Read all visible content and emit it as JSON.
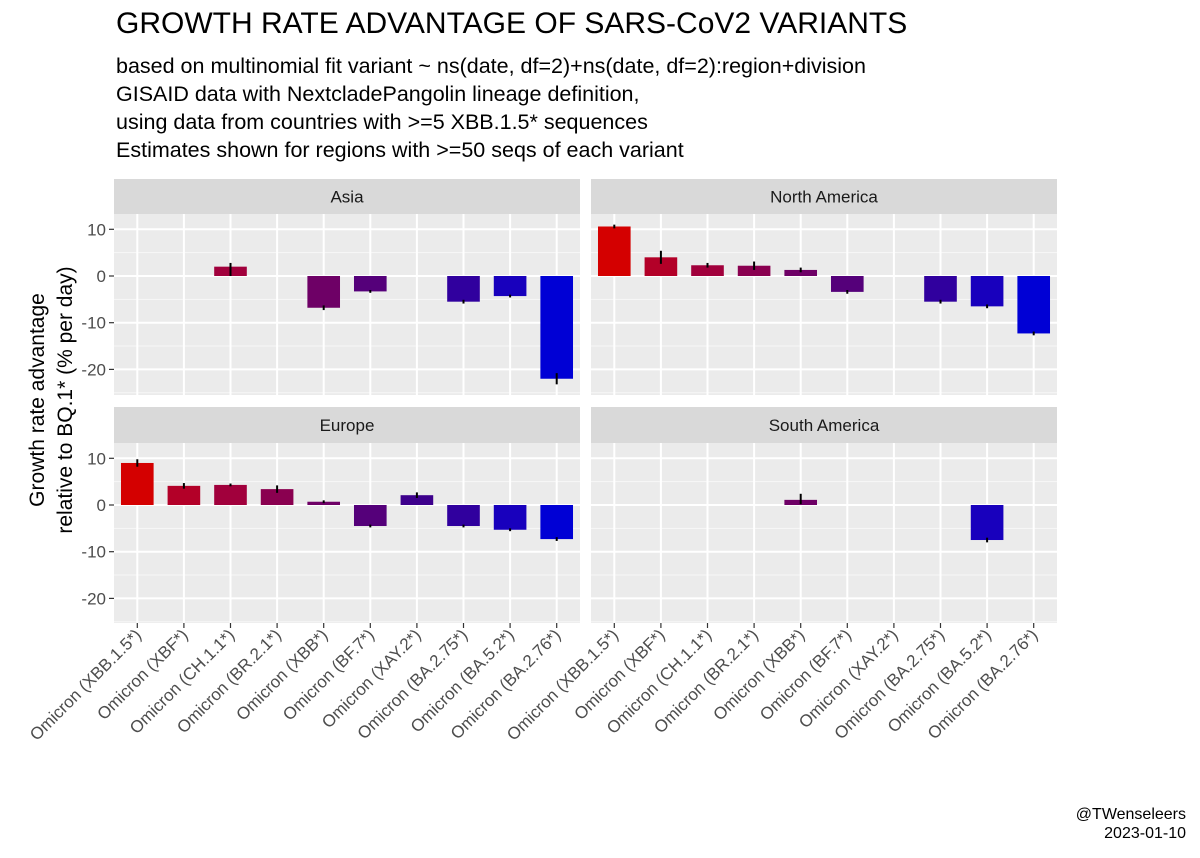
{
  "chart_data": {
    "type": "bar",
    "title": "GROWTH RATE ADVANTAGE OF SARS-CoV2 VARIANTS",
    "subtitle": [
      "based on multinomial fit variant ~ ns(date, df=2)+ns(date, df=2):region+division",
      "GISAID data with NextcladePangolin lineage definition,",
      "using data from countries with >=5 XBB.1.5* sequences",
      "Estimates shown for regions with >=50 seqs of each variant"
    ],
    "ylabel": [
      "Growth rate advantage",
      "relative to BQ.1* (% per day)"
    ],
    "xlabel": "",
    "ylim": [
      -25,
      12
    ],
    "yticks": [
      10,
      0,
      -10,
      -20
    ],
    "grid": true,
    "categories": [
      "Omicron (XBB.1.5*)",
      "Omicron (XBF*)",
      "Omicron (CH.1.1*)",
      "Omicron (BR.2.1*)",
      "Omicron (XBB*)",
      "Omicron (BF.7*)",
      "Omicron (XAY.2*)",
      "Omicron (BA.2.75*)",
      "Omicron (BA.5.2*)",
      "Omicron (BA.2.76*)"
    ],
    "category_colors": [
      "#d40000",
      "#b30028",
      "#a1003c",
      "#8a0050",
      "#6e0066",
      "#55007a",
      "#3d008c",
      "#30009e",
      "#1800bd",
      "#0000d5"
    ],
    "facets": [
      {
        "name": "Asia",
        "values": [
          null,
          null,
          2.0,
          null,
          -6.8,
          -3.3,
          null,
          -5.5,
          -4.3,
          -22.0
        ],
        "err_lo": [
          null,
          null,
          0.0,
          null,
          -7.3,
          -3.6,
          null,
          -5.9,
          -4.6,
          -23.2
        ],
        "err_hi": [
          null,
          null,
          2.8,
          null,
          -6.3,
          -3.0,
          null,
          -5.1,
          -4.0,
          -20.8
        ]
      },
      {
        "name": "North America",
        "values": [
          10.6,
          4.0,
          2.3,
          2.2,
          1.3,
          -3.4,
          null,
          -5.5,
          -6.5,
          -12.3
        ],
        "err_lo": [
          10.2,
          2.6,
          1.8,
          1.3,
          0.8,
          -3.8,
          null,
          -5.9,
          -6.9,
          -12.7
        ],
        "err_hi": [
          11.0,
          5.4,
          2.8,
          3.1,
          1.8,
          -3.0,
          null,
          -5.1,
          -6.1,
          -11.9
        ]
      },
      {
        "name": "Europe",
        "values": [
          9.0,
          4.1,
          4.3,
          3.4,
          0.7,
          -4.5,
          2.1,
          -4.5,
          -5.3,
          -7.3
        ],
        "err_lo": [
          8.2,
          3.5,
          4.0,
          2.6,
          0.4,
          -4.8,
          1.5,
          -4.8,
          -5.6,
          -7.7
        ],
        "err_hi": [
          9.8,
          4.7,
          4.6,
          4.2,
          1.0,
          -4.2,
          2.7,
          -4.2,
          -5.0,
          -6.9
        ]
      },
      {
        "name": "South America",
        "values": [
          null,
          null,
          null,
          null,
          1.1,
          null,
          null,
          null,
          -7.5,
          null
        ],
        "err_lo": [
          null,
          null,
          null,
          null,
          0.2,
          null,
          null,
          null,
          -8.0,
          null
        ],
        "err_hi": [
          null,
          null,
          null,
          null,
          2.4,
          null,
          null,
          null,
          -7.0,
          null
        ]
      }
    ]
  },
  "credit": {
    "handle": "@TWenseleers",
    "date": "2023-01-10"
  }
}
